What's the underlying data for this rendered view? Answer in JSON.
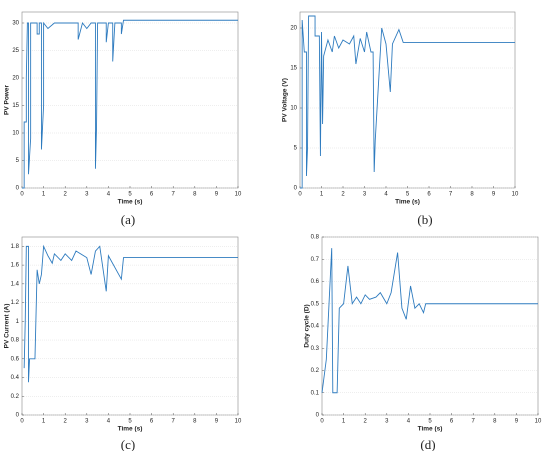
{
  "chart_data": [
    {
      "type": "line",
      "caption": "(a)",
      "xlabel": "Time (s)",
      "ylabel": "PV Power",
      "xlim": [
        0,
        10
      ],
      "xticks": [
        0,
        1,
        2,
        3,
        4,
        5,
        6,
        7,
        8,
        9,
        10
      ],
      "ylim": [
        0,
        32
      ],
      "yticks": [
        0,
        5,
        10,
        15,
        20,
        25,
        30
      ],
      "grid": true,
      "series": [
        {
          "color": "#2e7bbf",
          "x": [
            0,
            0.1,
            0.1,
            0.2,
            0.2,
            0.25,
            0.3,
            0.3,
            0.4,
            0.4,
            0.5,
            0.7,
            0.7,
            0.8,
            0.8,
            0.9,
            0.9,
            1.0,
            1.0,
            1.2,
            1.5,
            2.0,
            2.6,
            2.6,
            2.8,
            3.0,
            3.2,
            3.4,
            3.4,
            3.45,
            3.5,
            3.9,
            3.9,
            4.0,
            4.2,
            4.2,
            4.3,
            4.6,
            4.6,
            4.7,
            10
          ],
          "values": [
            0,
            0,
            12,
            12,
            20,
            30,
            30,
            2.5,
            9,
            30,
            30,
            30,
            28,
            28,
            30,
            30,
            7,
            15,
            30,
            29,
            30,
            30,
            30,
            27,
            30,
            29,
            30,
            30,
            3.5,
            11,
            30,
            30,
            26.5,
            30,
            30,
            23,
            30,
            30,
            28,
            30.5,
            30.5
          ]
        }
      ]
    },
    {
      "type": "line",
      "caption": "(b)",
      "xlabel": "Time (s)",
      "ylabel": "PV Voltage (V)",
      "xlim": [
        0,
        10
      ],
      "xticks": [
        0,
        1,
        2,
        3,
        4,
        5,
        6,
        7,
        8,
        9,
        10
      ],
      "ylim": [
        0,
        22
      ],
      "yticks": [
        0,
        5,
        10,
        15,
        20
      ],
      "grid": true,
      "series": [
        {
          "color": "#2e7bbf",
          "x": [
            0,
            0.1,
            0.1,
            0.2,
            0.3,
            0.3,
            0.35,
            0.4,
            0.4,
            0.7,
            0.7,
            0.9,
            0.95,
            1.0,
            1.05,
            1.1,
            1.3,
            1.5,
            1.6,
            1.8,
            2.0,
            2.3,
            2.5,
            2.6,
            2.8,
            3.0,
            3.1,
            3.3,
            3.4,
            3.45,
            3.5,
            3.8,
            4.0,
            4.2,
            4.3,
            4.6,
            4.8,
            10
          ],
          "values": [
            0,
            0,
            21,
            17,
            17,
            1.5,
            5,
            21.5,
            21.5,
            21.5,
            19,
            19,
            4,
            19.5,
            8,
            16.5,
            18.5,
            17,
            19,
            17.5,
            18.5,
            18,
            19,
            15.5,
            18.7,
            17,
            19.5,
            17,
            17,
            2,
            6,
            20,
            18,
            12,
            18,
            19.8,
            18.2,
            18.2
          ]
        }
      ]
    },
    {
      "type": "line",
      "caption": "(c)",
      "xlabel": "Time (s)",
      "ylabel": "PV Current (A)",
      "xlim": [
        0,
        10
      ],
      "xticks": [
        0,
        1,
        2,
        3,
        4,
        5,
        6,
        7,
        8,
        9,
        10
      ],
      "ylim": [
        0,
        1.9
      ],
      "yticks": [
        0,
        0.2,
        0.4,
        0.6,
        0.8,
        1,
        1.2,
        1.4,
        1.6,
        1.8
      ],
      "grid": true,
      "series": [
        {
          "color": "#2e7bbf",
          "x": [
            0.1,
            0.15,
            0.2,
            0.3,
            0.3,
            0.35,
            0.6,
            0.7,
            0.8,
            0.9,
            1.0,
            1.2,
            1.4,
            1.5,
            1.8,
            2.0,
            2.3,
            2.5,
            3.0,
            3.2,
            3.4,
            3.6,
            3.9,
            4.0,
            4.6,
            4.7,
            10
          ],
          "values": [
            0.5,
            1.0,
            1.8,
            1.8,
            0.35,
            0.6,
            0.6,
            1.55,
            1.4,
            1.5,
            1.8,
            1.7,
            1.62,
            1.72,
            1.65,
            1.72,
            1.65,
            1.75,
            1.68,
            1.5,
            1.75,
            1.8,
            1.32,
            1.7,
            1.45,
            1.68,
            1.68
          ]
        }
      ]
    },
    {
      "type": "line",
      "caption": "(d)",
      "xlabel": "Time (s)",
      "ylabel": "Duty cycle (D)",
      "xlim": [
        0,
        10
      ],
      "xticks": [
        0,
        1,
        2,
        3,
        4,
        5,
        6,
        7,
        8,
        9,
        10
      ],
      "ylim": [
        0,
        0.8
      ],
      "yticks": [
        0,
        0.1,
        0.2,
        0.3,
        0.4,
        0.5,
        0.6,
        0.7,
        0.8
      ],
      "grid": true,
      "series": [
        {
          "color": "#2e7bbf",
          "x": [
            0,
            0.2,
            0.45,
            0.5,
            0.7,
            0.8,
            1.0,
            1.2,
            1.4,
            1.6,
            1.8,
            2.0,
            2.2,
            2.5,
            2.7,
            3.0,
            3.2,
            3.5,
            3.7,
            3.9,
            4.1,
            4.3,
            4.5,
            4.7,
            4.8,
            10
          ],
          "values": [
            0.1,
            0.25,
            0.75,
            0.1,
            0.1,
            0.48,
            0.5,
            0.67,
            0.5,
            0.53,
            0.5,
            0.54,
            0.52,
            0.53,
            0.55,
            0.5,
            0.55,
            0.73,
            0.48,
            0.43,
            0.58,
            0.48,
            0.5,
            0.46,
            0.5,
            0.5
          ]
        }
      ]
    }
  ]
}
